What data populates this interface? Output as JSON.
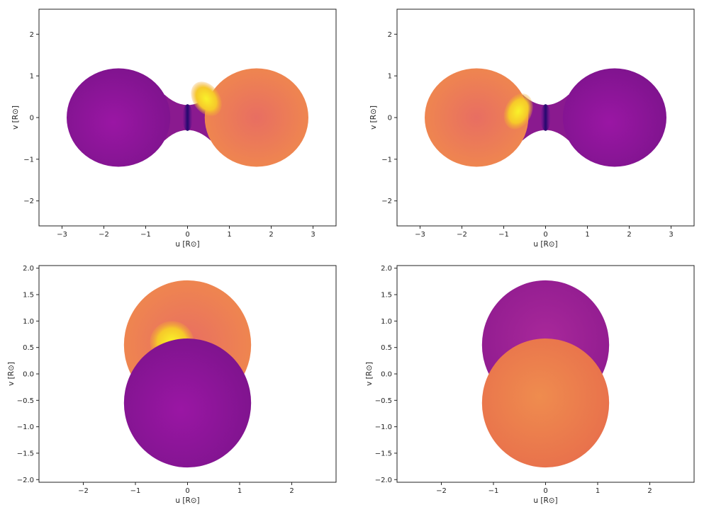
{
  "colors": {
    "hot_low": "#7b0aa0",
    "hot_mid": "#e8745a",
    "hot_high": "#f0c81e",
    "spot_core": "#f7f027",
    "neck_dark": "#2d0a6e",
    "star_purple": "#9b1fa0",
    "star_orange": "#ef8a4d"
  },
  "chart_data": [
    {
      "type": "other",
      "title": "",
      "xlabel": "u [R⊙]",
      "ylabel": "v [R⊙]",
      "xlim": [
        -3.55,
        3.55
      ],
      "ylim": [
        -2.6,
        2.6
      ],
      "xticks": [
        -3,
        -2,
        -1,
        0,
        1,
        2,
        3
      ],
      "yticks": [
        -2,
        -1,
        0,
        1,
        2
      ],
      "bodies": [
        {
          "name": "",
          "center": [
            -1.65,
            0
          ],
          "radius": 1.18,
          "color": "star_purple"
        },
        {
          "name": "",
          "center": [
            1.65,
            0
          ],
          "radius": 1.18,
          "color": "star_orange"
        }
      ],
      "spot": {
        "side": "right",
        "center": [
          0.45,
          0.45
        ]
      }
    },
    {
      "type": "other",
      "title": "",
      "xlabel": "u [R⊙]",
      "ylabel": "v [R⊙]",
      "xlim": [
        -3.55,
        3.55
      ],
      "ylim": [
        -2.6,
        2.6
      ],
      "xticks": [
        -3,
        -2,
        -1,
        0,
        1,
        2,
        3
      ],
      "yticks": [
        -2,
        -1,
        0,
        1,
        2
      ],
      "bodies": [
        {
          "name": "",
          "center": [
            -1.65,
            0
          ],
          "radius": 1.18,
          "color": "star_orange"
        },
        {
          "name": "",
          "center": [
            1.65,
            0
          ],
          "radius": 1.18,
          "color": "star_purple"
        }
      ],
      "spot": {
        "side": "left",
        "center": [
          -0.65,
          0.15
        ]
      }
    },
    {
      "type": "other",
      "title": "",
      "xlabel": "u [R⊙]",
      "ylabel": "v [R⊙]",
      "xlim": [
        -2.85,
        2.85
      ],
      "ylim": [
        -2.05,
        2.05
      ],
      "xticks": [
        -2,
        -1,
        0,
        1,
        2
      ],
      "yticks": [
        -2.0,
        -1.5,
        -1.0,
        -0.5,
        0.0,
        0.5,
        1.0,
        1.5,
        2.0
      ],
      "bodies": [
        {
          "name": "",
          "center": [
            0,
            0.55
          ],
          "radius": 1.22,
          "color": "star_orange"
        },
        {
          "name": "",
          "center": [
            0,
            -0.55
          ],
          "radius": 1.22,
          "color": "star_purple"
        }
      ],
      "spot": {
        "side": "back",
        "center": [
          -0.3,
          0.6
        ]
      }
    },
    {
      "type": "other",
      "title": "",
      "xlabel": "u [R⊙]",
      "ylabel": "v [R⊙]",
      "xlim": [
        -2.85,
        2.85
      ],
      "ylim": [
        -2.05,
        2.05
      ],
      "xticks": [
        -2,
        -1,
        0,
        1,
        2
      ],
      "yticks": [
        -2.0,
        -1.5,
        -1.0,
        -0.5,
        0.0,
        0.5,
        1.0,
        1.5,
        2.0
      ],
      "bodies": [
        {
          "name": "",
          "center": [
            0,
            0.55
          ],
          "radius": 1.22,
          "color": "star_purple"
        },
        {
          "name": "",
          "center": [
            0,
            -0.55
          ],
          "radius": 1.22,
          "color": "star_orange"
        }
      ],
      "spot": null
    }
  ]
}
